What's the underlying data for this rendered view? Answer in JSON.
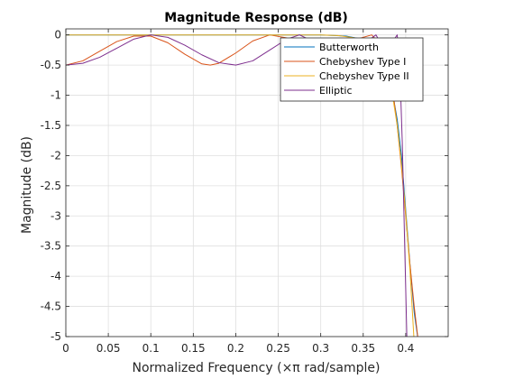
{
  "chart_data": {
    "type": "line",
    "title": "Magnitude Response (dB)",
    "xlabel": "Normalized Frequency (×π rad/sample)",
    "ylabel": "Magnitude (dB)",
    "xlim": [
      0,
      0.45
    ],
    "ylim": [
      -5,
      0.1
    ],
    "xticks": [
      0,
      0.05,
      0.1,
      0.15,
      0.2,
      0.25,
      0.3,
      0.35,
      0.4
    ],
    "xtick_labels": [
      "0",
      "0.05",
      "0.1",
      "0.15",
      "0.2",
      "0.25",
      "0.3",
      "0.35",
      "0.4"
    ],
    "yticks": [
      0,
      -0.5,
      -1,
      -1.5,
      -2,
      -2.5,
      -3,
      -3.5,
      -4,
      -4.5,
      -5
    ],
    "ytick_labels": [
      "0",
      "-0.5",
      "-1",
      "-1.5",
      "-2",
      "-2.5",
      "-3",
      "-3.5",
      "-4",
      "-4.5",
      "-5"
    ],
    "grid": true,
    "legend_position": "top-right",
    "series": [
      {
        "name": "Butterworth",
        "color": "#0072BD",
        "x": [
          0,
          0.05,
          0.1,
          0.15,
          0.2,
          0.25,
          0.3,
          0.33,
          0.345,
          0.355,
          0.365,
          0.375,
          0.385,
          0.39,
          0.395,
          0.4,
          0.405,
          0.41,
          0.415
        ],
        "y": [
          0,
          0,
          0,
          0,
          0,
          0,
          0,
          -0.02,
          -0.06,
          -0.13,
          -0.26,
          -0.5,
          -1.0,
          -1.4,
          -2.0,
          -2.9,
          -3.8,
          -4.6,
          -5.1
        ]
      },
      {
        "name": "Chebyshev Type I",
        "color": "#D95319",
        "x": [
          0,
          0.02,
          0.04,
          0.06,
          0.08,
          0.1,
          0.12,
          0.14,
          0.16,
          0.17,
          0.18,
          0.2,
          0.22,
          0.24,
          0.26,
          0.28,
          0.3,
          0.32,
          0.34,
          0.36,
          0.37,
          0.38,
          0.385,
          0.39,
          0.395,
          0.4,
          0.405,
          0.41,
          0.415
        ],
        "y": [
          -0.5,
          -0.43,
          -0.27,
          -0.11,
          -0.02,
          -0.02,
          -0.13,
          -0.32,
          -0.48,
          -0.5,
          -0.47,
          -0.3,
          -0.1,
          0,
          -0.05,
          -0.18,
          -0.3,
          -0.25,
          -0.08,
          0,
          -0.15,
          -0.5,
          -0.95,
          -1.5,
          -2.2,
          -3.0,
          -3.8,
          -4.5,
          -5.1
        ]
      },
      {
        "name": "Chebyshev Type II",
        "color": "#EDB120",
        "x": [
          0,
          0.05,
          0.1,
          0.15,
          0.2,
          0.25,
          0.3,
          0.32,
          0.34,
          0.355,
          0.365,
          0.375,
          0.385,
          0.39,
          0.395,
          0.4,
          0.405,
          0.41
        ],
        "y": [
          0,
          0,
          0,
          0,
          0,
          0,
          0,
          -0.01,
          -0.05,
          -0.12,
          -0.25,
          -0.55,
          -1.05,
          -1.5,
          -2.15,
          -2.95,
          -3.9,
          -5.1
        ]
      },
      {
        "name": "Elliptic",
        "color": "#7E2F8E",
        "x": [
          0,
          0.02,
          0.04,
          0.06,
          0.08,
          0.1,
          0.12,
          0.14,
          0.16,
          0.18,
          0.2,
          0.22,
          0.24,
          0.26,
          0.275,
          0.29,
          0.31,
          0.33,
          0.35,
          0.36,
          0.365,
          0.37,
          0.375,
          0.38,
          0.385,
          0.39,
          0.393,
          0.396,
          0.398,
          0.4,
          0.4015
        ],
        "y": [
          -0.5,
          -0.47,
          -0.37,
          -0.22,
          -0.07,
          0,
          -0.04,
          -0.17,
          -0.33,
          -0.46,
          -0.5,
          -0.43,
          -0.25,
          -0.07,
          0,
          -0.1,
          -0.38,
          -0.5,
          -0.3,
          -0.05,
          0,
          -0.12,
          -0.4,
          -0.5,
          -0.1,
          0,
          -0.5,
          -1.8,
          -3.0,
          -4.2,
          -5.1
        ]
      }
    ]
  }
}
